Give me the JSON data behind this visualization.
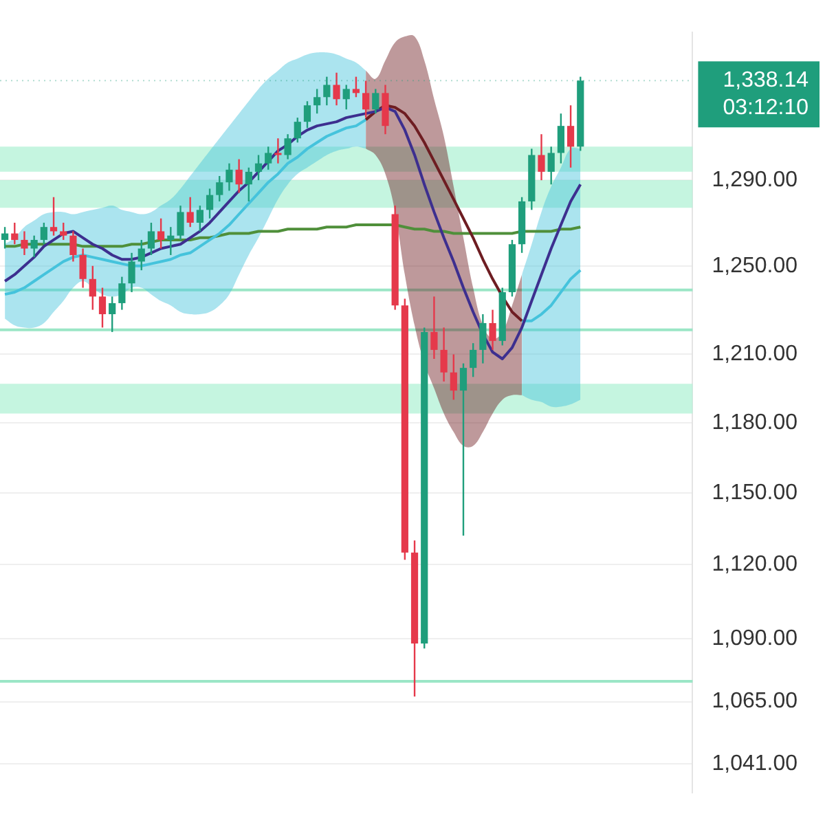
{
  "chart_data": {
    "type": "candlestick",
    "categories": [
      null,
      null,
      null,
      null,
      null,
      null,
      null,
      null,
      null,
      null,
      null,
      null,
      null,
      null,
      null,
      null,
      null,
      null,
      null,
      null,
      null,
      null,
      null,
      null,
      null,
      null,
      null,
      null,
      null,
      null,
      null,
      null,
      null,
      null,
      null,
      null,
      null,
      null,
      null,
      null,
      null,
      null,
      null,
      null,
      null,
      null,
      null,
      null,
      null,
      null,
      null,
      null,
      null,
      null,
      null,
      null,
      null,
      null,
      null,
      null,
      null,
      null,
      null,
      null,
      null,
      null,
      null,
      null,
      null,
      null,
      null
    ],
    "ohlc": [
      [
        1262,
        1268,
        1258,
        1265
      ],
      [
        1265,
        1270,
        1260,
        1262
      ],
      [
        1262,
        1266,
        1255,
        1258
      ],
      [
        1258,
        1264,
        1254,
        1262
      ],
      [
        1262,
        1270,
        1260,
        1268
      ],
      [
        1268,
        1282,
        1264,
        1266
      ],
      [
        1266,
        1270,
        1262,
        1264
      ],
      [
        1264,
        1266,
        1252,
        1255
      ],
      [
        1255,
        1258,
        1240,
        1244
      ],
      [
        1244,
        1250,
        1230,
        1236
      ],
      [
        1236,
        1240,
        1222,
        1228
      ],
      [
        1228,
        1236,
        1220,
        1233
      ],
      [
        1233,
        1245,
        1230,
        1242
      ],
      [
        1242,
        1256,
        1238,
        1252
      ],
      [
        1252,
        1262,
        1248,
        1258
      ],
      [
        1258,
        1270,
        1255,
        1266
      ],
      [
        1266,
        1272,
        1258,
        1262
      ],
      [
        1262,
        1268,
        1255,
        1264
      ],
      [
        1264,
        1278,
        1262,
        1275
      ],
      [
        1275,
        1282,
        1268,
        1270
      ],
      [
        1270,
        1278,
        1266,
        1276
      ],
      [
        1276,
        1286,
        1272,
        1283
      ],
      [
        1283,
        1292,
        1280,
        1289
      ],
      [
        1289,
        1298,
        1285,
        1295
      ],
      [
        1295,
        1300,
        1284,
        1288
      ],
      [
        1288,
        1296,
        1280,
        1294
      ],
      [
        1294,
        1302,
        1290,
        1298
      ],
      [
        1298,
        1306,
        1295,
        1303
      ],
      [
        1303,
        1310,
        1298,
        1302
      ],
      [
        1302,
        1312,
        1300,
        1310
      ],
      [
        1310,
        1320,
        1308,
        1318
      ],
      [
        1318,
        1328,
        1315,
        1326
      ],
      [
        1326,
        1334,
        1322,
        1330
      ],
      [
        1330,
        1340,
        1326,
        1336
      ],
      [
        1336,
        1342,
        1326,
        1329
      ],
      [
        1329,
        1336,
        1324,
        1334
      ],
      [
        1334,
        1340,
        1330,
        1332
      ],
      [
        1332,
        1338,
        1320,
        1324
      ],
      [
        1324,
        1334,
        1322,
        1332
      ],
      [
        1332,
        1336,
        1312,
        1316
      ],
      [
        1274,
        1278,
        1230,
        1232
      ],
      [
        1232,
        1235,
        1122,
        1125
      ],
      [
        1125,
        1130,
        1067,
        1088
      ],
      [
        1088,
        1222,
        1086,
        1220
      ],
      [
        1220,
        1236,
        1208,
        1212
      ],
      [
        1212,
        1222,
        1198,
        1202
      ],
      [
        1202,
        1210,
        1190,
        1194
      ],
      [
        1194,
        1206,
        1132,
        1204
      ],
      [
        1204,
        1215,
        1200,
        1212
      ],
      [
        1212,
        1228,
        1206,
        1224
      ],
      [
        1224,
        1230,
        1212,
        1216
      ],
      [
        1216,
        1240,
        1214,
        1238
      ],
      [
        1238,
        1262,
        1236,
        1260
      ],
      [
        1260,
        1282,
        1256,
        1280
      ],
      [
        1280,
        1305,
        1276,
        1302
      ],
      [
        1302,
        1312,
        1290,
        1294
      ],
      [
        1294,
        1306,
        1288,
        1303
      ],
      [
        1303,
        1322,
        1298,
        1316
      ],
      [
        1316,
        1326,
        1296,
        1306
      ],
      [
        1306,
        1340,
        1304,
        1338.14
      ],
      null,
      null,
      null,
      null,
      null,
      null,
      null,
      null,
      null,
      null,
      null
    ],
    "colors": [
      "#1f9e7c",
      "#e5394b",
      "#e5394b",
      "#1f9e7c",
      "#1f9e7c",
      "#e5394b",
      "#e5394b",
      "#e5394b",
      "#e5394b",
      "#e5394b",
      "#e5394b",
      "#1f9e7c",
      "#1f9e7c",
      "#1f9e7c",
      "#1f9e7c",
      "#1f9e7c",
      "#e5394b",
      "#1f9e7c",
      "#1f9e7c",
      "#e5394b",
      "#1f9e7c",
      "#1f9e7c",
      "#1f9e7c",
      "#1f9e7c",
      "#e5394b",
      "#1f9e7c",
      "#1f9e7c",
      "#1f9e7c",
      "#e5394b",
      "#1f9e7c",
      "#1f9e7c",
      "#1f9e7c",
      "#1f9e7c",
      "#1f9e7c",
      "#e5394b",
      "#1f9e7c",
      "#e5394b",
      "#e5394b",
      "#1f9e7c",
      "#e5394b",
      "#e5394b",
      "#e5394b",
      "#e5394b",
      "#1f9e7c",
      "#e5394b",
      "#e5394b",
      "#e5394b",
      "#1f9e7c",
      "#1f9e7c",
      "#1f9e7c",
      "#e5394b",
      "#1f9e7c",
      "#1f9e7c",
      "#1f9e7c",
      "#1f9e7c",
      "#e5394b",
      "#1f9e7c",
      "#1f9e7c",
      "#e5394b",
      "#1f9e7c",
      null,
      null,
      null,
      null,
      null,
      null,
      null,
      null,
      null,
      null,
      null
    ],
    "series": [
      {
        "type": "line",
        "color": "#4f8f3a",
        "values": [
          1259,
          1259,
          1260,
          1260,
          1260,
          1260,
          1260,
          1260,
          1259,
          1259,
          1259,
          1259,
          1259,
          1260,
          1260,
          1261,
          1262,
          1262,
          1262,
          1262,
          1263,
          1263,
          1264,
          1265,
          1265,
          1265,
          1266,
          1266,
          1266,
          1267,
          1267,
          1267,
          1267,
          1268,
          1268,
          1268,
          1269,
          1269,
          1269,
          1269,
          1269,
          1268,
          1267,
          1267,
          1266,
          1266,
          1265,
          1265,
          1265,
          1265,
          1265,
          1265,
          1265,
          1266,
          1266,
          1266,
          1266,
          1267,
          1267,
          1268,
          null,
          null,
          null,
          null,
          null,
          null,
          null,
          null,
          null,
          null,
          null
        ]
      },
      {
        "type": "line",
        "color": "#45c3dc",
        "values": [
          1237,
          1238,
          1240,
          1243,
          1246,
          1249,
          1252,
          1254,
          1255,
          1254,
          1253,
          1252,
          1251,
          1250,
          1250,
          1251,
          1252,
          1253,
          1255,
          1256,
          1259,
          1262,
          1265,
          1269,
          1274,
          1279,
          1284,
          1289,
          1293,
          1298,
          1301,
          1305,
          1308,
          1311,
          1313,
          1315,
          1316,
          1319,
          null,
          null,
          null,
          null,
          null,
          null,
          null,
          null,
          null,
          null,
          null,
          null,
          null,
          null,
          null,
          1225,
          1225,
          1228,
          1232,
          1238,
          1244,
          1248,
          null,
          null,
          null,
          null,
          null,
          null,
          null,
          null,
          null,
          null,
          null
        ],
        "upper": [
          1260,
          1263,
          1268,
          1271,
          1274,
          1275,
          1275,
          1274,
          1275,
          1276,
          1277,
          1278,
          1276,
          1275,
          1274,
          1275,
          1278,
          1281,
          1286,
          1292,
          1298,
          1304,
          1310,
          1316,
          1322,
          1328,
          1334,
          1339,
          1343,
          1347,
          1349,
          1351,
          1352,
          1352,
          1351,
          1349,
          1347,
          1343,
          null,
          null,
          null,
          null,
          null,
          null,
          null,
          null,
          null,
          null,
          null,
          null,
          null,
          null,
          null,
          1246,
          1260,
          1275,
          1287,
          1296,
          1305,
          1305,
          null,
          null,
          null,
          null,
          null,
          null,
          null,
          null,
          null,
          null,
          null
        ],
        "lower": [
          1226,
          1223,
          1222,
          1222,
          1224,
          1229,
          1234,
          1240,
          1243,
          1240,
          1237,
          1236,
          1237,
          1240,
          1240,
          1237,
          1234,
          1232,
          1229,
          1228,
          1228,
          1229,
          1232,
          1237,
          1246,
          1255,
          1263,
          1272,
          1281,
          1288,
          1293,
          1296,
          1299,
          1302,
          1304,
          1305,
          1306,
          1305,
          null,
          null,
          null,
          null,
          null,
          null,
          null,
          null,
          null,
          null,
          null,
          null,
          null,
          null,
          null,
          1192,
          1190,
          1189,
          1187,
          1187,
          1188,
          1190,
          null,
          null,
          null,
          null,
          null,
          null,
          null,
          null,
          null,
          null,
          null
        ]
      },
      {
        "type": "line",
        "color": "#6e1d22",
        "values": [
          null,
          null,
          null,
          null,
          null,
          null,
          null,
          null,
          null,
          null,
          null,
          null,
          null,
          null,
          null,
          null,
          null,
          null,
          null,
          null,
          null,
          null,
          null,
          null,
          null,
          null,
          null,
          null,
          null,
          null,
          null,
          null,
          null,
          null,
          null,
          null,
          null,
          1319,
          1323,
          1326,
          1325,
          1322,
          1316,
          1308,
          1299,
          1290,
          1281,
          1272,
          1263,
          1253,
          1244,
          1236,
          1229,
          1225,
          null,
          null,
          null,
          null,
          null,
          null,
          null,
          null,
          null,
          null,
          null,
          null,
          null,
          null,
          null,
          null,
          null
        ],
        "upper": [
          null,
          null,
          null,
          null,
          null,
          null,
          null,
          null,
          null,
          null,
          null,
          null,
          null,
          null,
          null,
          null,
          null,
          null,
          null,
          null,
          null,
          null,
          null,
          null,
          null,
          null,
          null,
          null,
          null,
          null,
          null,
          null,
          null,
          null,
          null,
          null,
          null,
          1343,
          1339,
          1348,
          1357,
          1360,
          1360,
          1348,
          1329,
          1311,
          1287,
          1263,
          1240,
          1223,
          1217,
          1220,
          1232,
          1246,
          null,
          null,
          null,
          null,
          null,
          null,
          null,
          null,
          null,
          null,
          null,
          null,
          null,
          null,
          null,
          null,
          null
        ],
        "lower": [
          null,
          null,
          null,
          null,
          null,
          null,
          null,
          null,
          null,
          null,
          null,
          null,
          null,
          null,
          null,
          null,
          null,
          null,
          null,
          null,
          null,
          null,
          null,
          null,
          null,
          null,
          null,
          null,
          null,
          null,
          null,
          null,
          null,
          null,
          null,
          null,
          null,
          1305,
          1302,
          1293,
          1275,
          1246,
          1223,
          1206,
          1195,
          1184,
          1176,
          1170,
          1170,
          1176,
          1184,
          1190,
          1192,
          1192,
          null,
          null,
          null,
          null,
          null,
          null,
          null,
          null,
          null,
          null,
          null,
          null,
          null,
          null,
          null,
          null,
          null
        ]
      },
      {
        "type": "line",
        "color": "#3d2f8f",
        "values": [
          1243,
          1246,
          1250,
          1254,
          1259,
          1262,
          1265,
          1266,
          1263,
          1260,
          1258,
          1255,
          1253,
          1253,
          1254,
          1256,
          1258,
          1259,
          1260,
          1263,
          1266,
          1270,
          1275,
          1280,
          1285,
          1289,
          1294,
          1299,
          1304,
          1307,
          1311,
          1314,
          1316,
          1317,
          1318,
          1320,
          1321,
          1322,
          1323,
          1325,
          1323,
          1314,
          1302,
          1288,
          1275,
          1263,
          1252,
          1240,
          1229,
          1219,
          1211,
          1208,
          1213,
          1222,
          1234,
          1246,
          1258,
          1269,
          1280,
          1288,
          null,
          null,
          null,
          null,
          null,
          null,
          null,
          null,
          null,
          null,
          null
        ]
      }
    ],
    "ylim": [
      1030,
      1362
    ],
    "yticks": [
      {
        "value": 1041,
        "label": "1,041.00"
      },
      {
        "value": 1065,
        "label": "1,065.00"
      },
      {
        "value": 1090,
        "label": "1,090.00"
      },
      {
        "value": 1120,
        "label": "1,120.00"
      },
      {
        "value": 1150,
        "label": "1,150.00"
      },
      {
        "value": 1180,
        "label": "1,180.00"
      },
      {
        "value": 1210,
        "label": "1,210.00"
      },
      {
        "value": 1250,
        "label": "1,250.00"
      },
      {
        "value": 1290,
        "label": "1,290.00"
      }
    ],
    "log": true,
    "grid": "y",
    "tick_labels": "y",
    "marker": "none",
    "line_style": "solid",
    "bands": [
      {
        "axis": "y",
        "from": 1294,
        "to": 1306,
        "color": "#b6f2d8"
      },
      {
        "axis": "y",
        "from": 1277,
        "to": 1290,
        "color": "#b6f2d8"
      },
      {
        "axis": "y",
        "from": 1184,
        "to": 1197,
        "color": "#b6f2d8"
      }
    ],
    "ref_lines": [
      {
        "axis": "y",
        "value": 1239,
        "color": "#9be6c6"
      },
      {
        "axis": "y",
        "value": 1221,
        "color": "#9be6c6"
      },
      {
        "axis": "y",
        "value": 1073,
        "color": "#9be6c6"
      },
      {
        "axis": "y",
        "value": 1338.14,
        "label": "1,338.14",
        "color": "#1f9e7c",
        "line_style": "dotted"
      }
    ],
    "annotations": [
      "03:12:10"
    ]
  }
}
